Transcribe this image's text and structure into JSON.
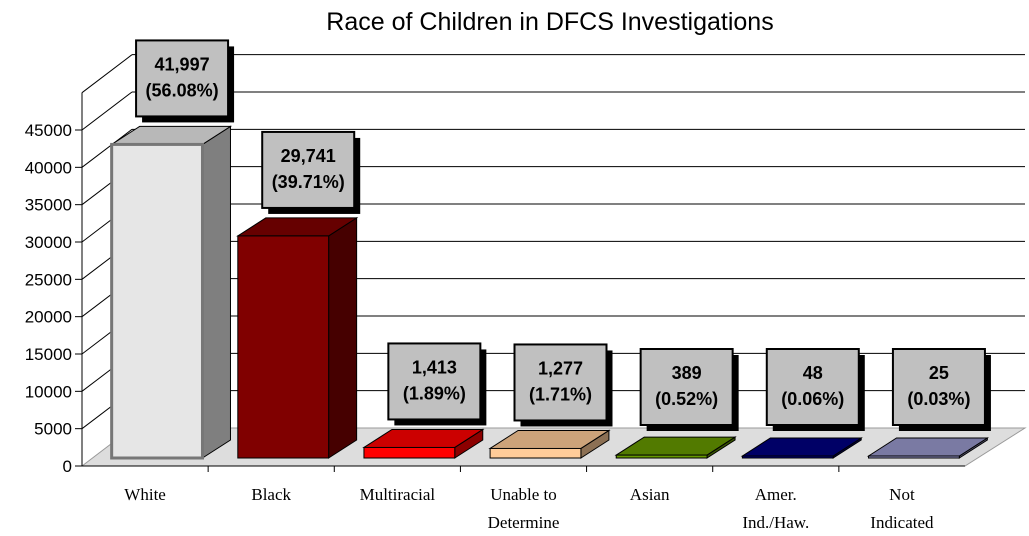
{
  "chart_data": {
    "type": "bar",
    "title": "Race of Children in DFCS Investigations",
    "categories": [
      [
        "White"
      ],
      [
        "Black"
      ],
      [
        "Multiracial"
      ],
      [
        "Unable to",
        "Determine"
      ],
      [
        "Asian"
      ],
      [
        "Amer.",
        "Ind./Haw."
      ],
      [
        "Not",
        "Indicated"
      ]
    ],
    "values": [
      41997,
      29741,
      1413,
      1277,
      389,
      48,
      25
    ],
    "data_labels": [
      [
        "41,997",
        "(56.08%)"
      ],
      [
        "29,741",
        "(39.71%)"
      ],
      [
        "1,413",
        "(1.89%)"
      ],
      [
        "1,277",
        "(1.71%)"
      ],
      [
        "389",
        "(0.52%)"
      ],
      [
        "48",
        "(0.06%)"
      ],
      [
        "25",
        "(0.03%)"
      ]
    ],
    "colors": [
      "#E6E6E6",
      "#800000",
      "#FF0000",
      "#FFCC99",
      "#669900",
      "#000080",
      "#9999CC"
    ],
    "yticks": [
      "0",
      "5000",
      "10000",
      "15000",
      "20000",
      "25000",
      "30000",
      "35000",
      "40000",
      "45000"
    ],
    "ylim": [
      0,
      45000
    ],
    "grid": true,
    "legend": "none",
    "style": "3d-bars"
  }
}
